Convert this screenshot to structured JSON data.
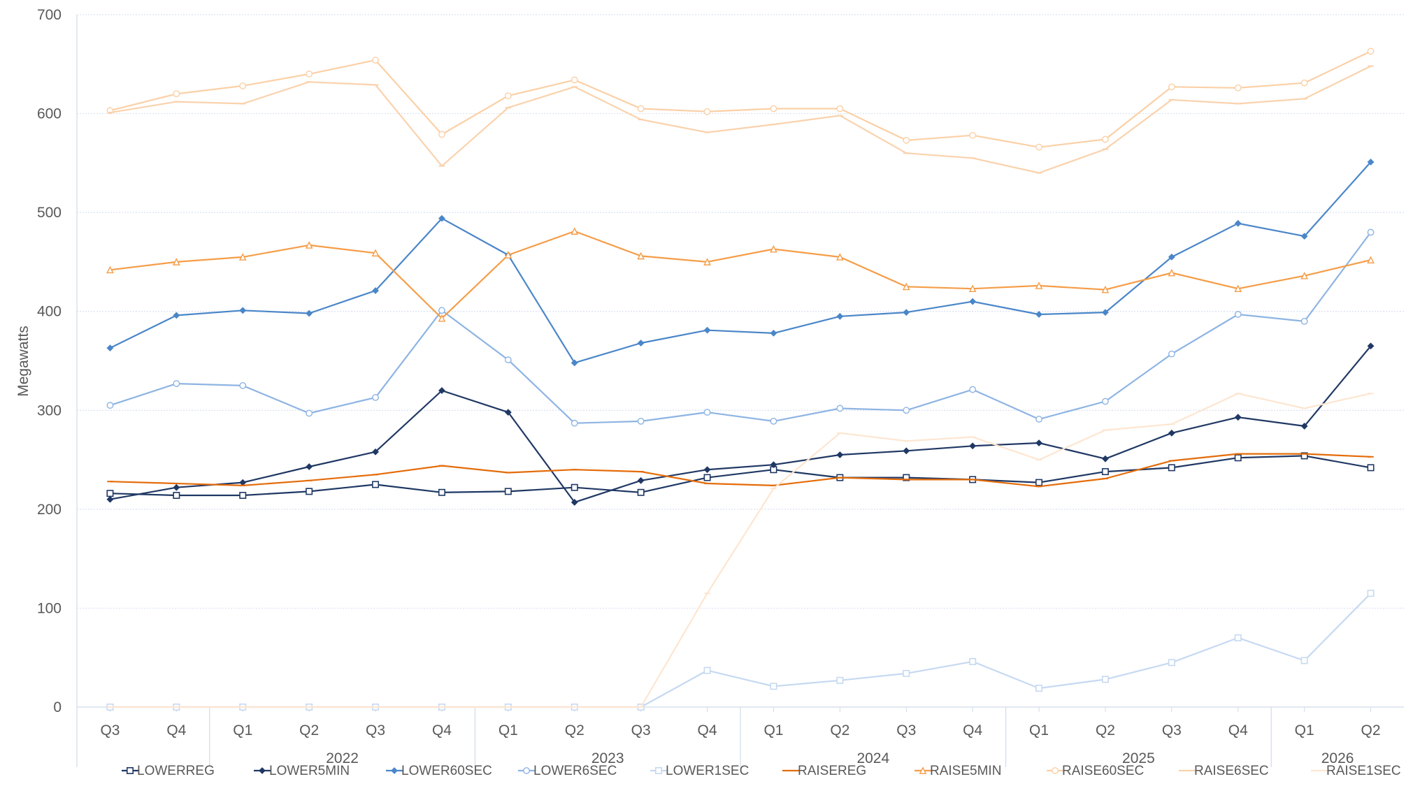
{
  "chart_data": {
    "type": "line",
    "ylabel": "Megawatts",
    "ylim": [
      0,
      700
    ],
    "yticks": [
      0,
      100,
      200,
      300,
      400,
      500,
      600,
      700
    ],
    "grid": true,
    "legend_position": "bottom",
    "categories": [
      "Q3",
      "Q4",
      "Q1",
      "Q2",
      "Q3",
      "Q4",
      "Q1",
      "Q2",
      "Q3",
      "Q4",
      "Q1",
      "Q2",
      "Q3",
      "Q4",
      "Q1",
      "Q2",
      "Q3",
      "Q4",
      "Q1",
      "Q2"
    ],
    "year_groups": [
      {
        "label": "",
        "start": 0,
        "end": 1
      },
      {
        "label": "2022",
        "start": 2,
        "end": 5
      },
      {
        "label": "2023",
        "start": 6,
        "end": 9
      },
      {
        "label": "2024",
        "start": 10,
        "end": 13
      },
      {
        "label": "2025",
        "start": 14,
        "end": 17
      },
      {
        "label": "2026",
        "start": 18,
        "end": 19
      }
    ],
    "series": [
      {
        "name": "LOWERREG",
        "color": "#1f3864",
        "marker": "square",
        "values": [
          216,
          214,
          214,
          218,
          225,
          217,
          218,
          222,
          217,
          232,
          240,
          232,
          232,
          230,
          227,
          238,
          242,
          252,
          254,
          242
        ]
      },
      {
        "name": "LOWER5MIN",
        "color": "#203864",
        "marker": "diamond",
        "values": [
          210,
          222,
          227,
          243,
          258,
          320,
          298,
          207,
          229,
          240,
          245,
          255,
          259,
          264,
          267,
          251,
          277,
          293,
          284,
          365
        ]
      },
      {
        "name": "LOWER60SEC",
        "color": "#4a86c8",
        "marker": "diamond",
        "values": [
          363,
          396,
          401,
          398,
          421,
          494,
          457,
          348,
          368,
          381,
          378,
          395,
          399,
          410,
          397,
          399,
          455,
          489,
          476,
          551
        ]
      },
      {
        "name": "LOWER6SEC",
        "color": "#8eb4e3",
        "marker": "circle",
        "values": [
          305,
          327,
          325,
          297,
          313,
          401,
          351,
          287,
          289,
          298,
          289,
          302,
          300,
          321,
          291,
          309,
          357,
          397,
          390,
          480
        ]
      },
      {
        "name": "LOWER1SEC",
        "color": "#c6d9f1",
        "marker": "square",
        "values": [
          0,
          0,
          0,
          0,
          0,
          0,
          0,
          0,
          0,
          37,
          21,
          27,
          34,
          46,
          19,
          28,
          45,
          70,
          47,
          115
        ]
      },
      {
        "name": "RAISEREG",
        "color": "#e46c0a",
        "marker": "dash",
        "values": [
          228,
          226,
          224,
          229,
          235,
          244,
          237,
          240,
          238,
          226,
          224,
          232,
          230,
          230,
          223,
          231,
          249,
          256,
          256,
          253
        ]
      },
      {
        "name": "RAISE5MIN",
        "color": "#f59d48",
        "marker": "triangle",
        "values": [
          442,
          450,
          455,
          467,
          459,
          393,
          457,
          481,
          456,
          450,
          463,
          455,
          425,
          423,
          426,
          422,
          439,
          423,
          436,
          452
        ]
      },
      {
        "name": "RAISE60SEC",
        "color": "#fbd0a6",
        "marker": "circle",
        "values": [
          603,
          620,
          628,
          640,
          654,
          579,
          618,
          634,
          605,
          602,
          605,
          605,
          573,
          578,
          566,
          574,
          627,
          626,
          631,
          663
        ]
      },
      {
        "name": "RAISE6SEC",
        "color": "#fad2ad",
        "marker": "dash",
        "values": [
          601,
          612,
          610,
          632,
          629,
          547,
          606,
          627,
          594,
          581,
          589,
          598,
          560,
          555,
          540,
          564,
          614,
          610,
          615,
          648
        ]
      },
      {
        "name": "RAISE1SEC",
        "color": "#fde6d1",
        "marker": "dash",
        "values": [
          0,
          0,
          0,
          0,
          0,
          0,
          0,
          0,
          0,
          115,
          221,
          277,
          269,
          273,
          250,
          280,
          286,
          317,
          302,
          317
        ]
      }
    ]
  }
}
